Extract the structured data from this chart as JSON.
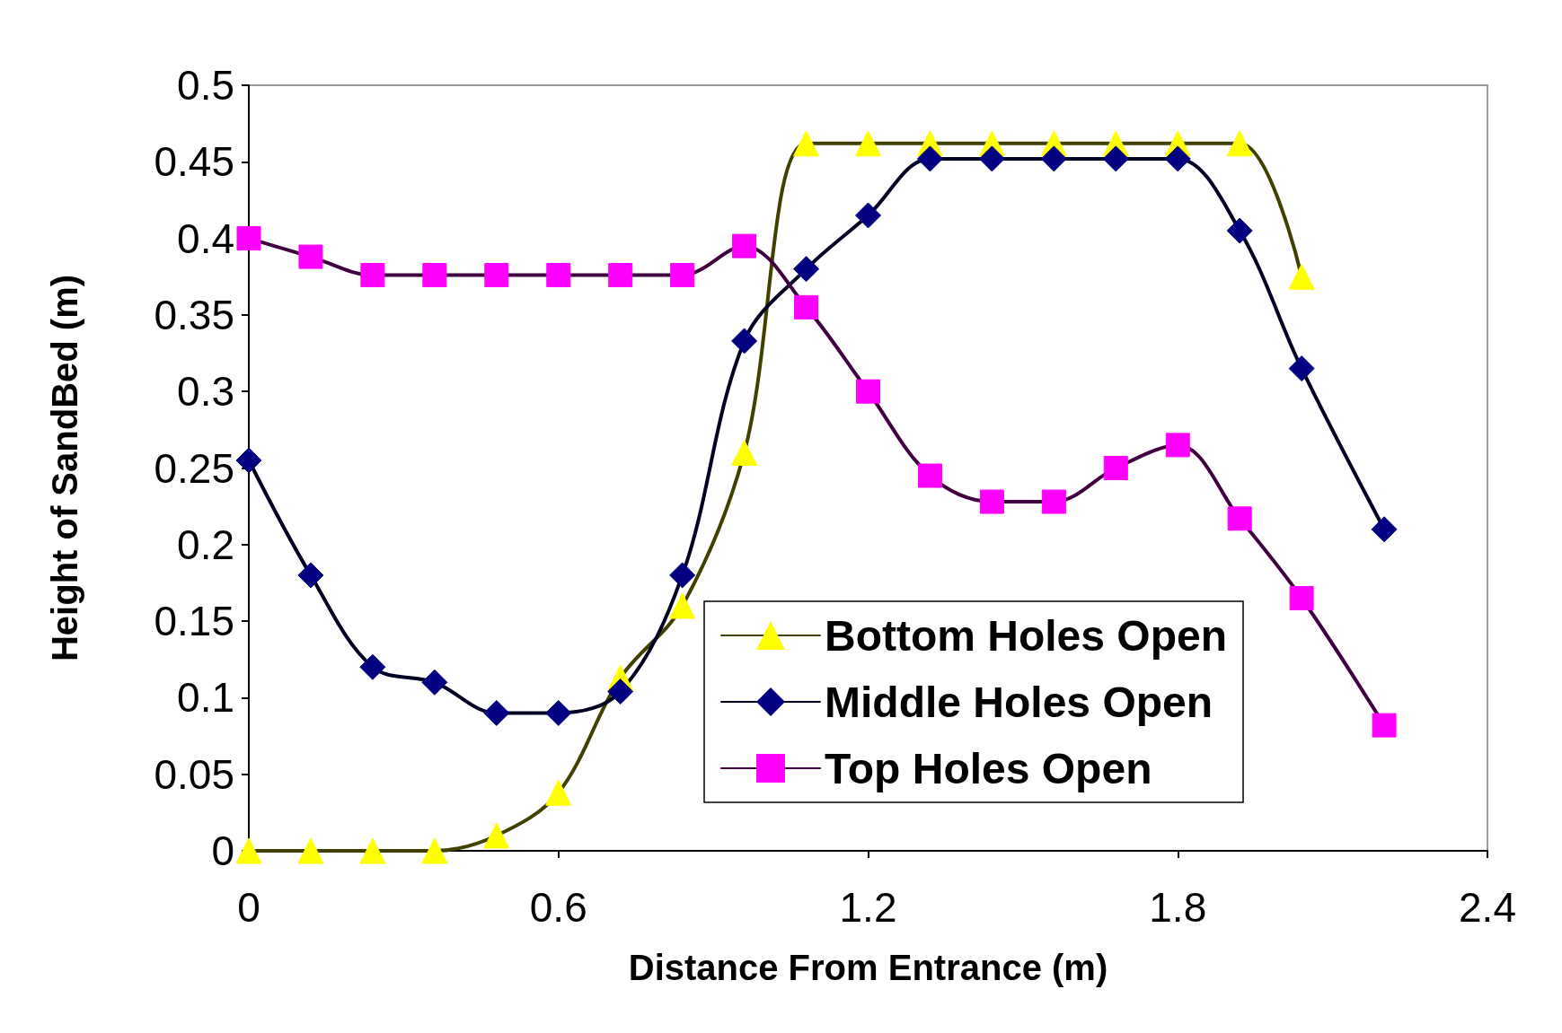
{
  "chart_data": {
    "type": "line",
    "xlabel": "Distance From Entrance (m)",
    "ylabel": "Height of SandBed (m)",
    "xlim": [
      0,
      2.4
    ],
    "xticks": [
      0,
      0.6,
      1.2,
      1.8,
      2.4
    ],
    "ylim": [
      0,
      0.5
    ],
    "yticks": [
      0,
      0.05,
      0.1,
      0.15,
      0.2,
      0.25,
      0.3,
      0.35,
      0.4,
      0.45,
      0.5
    ],
    "grid": false,
    "legend": "bottom right",
    "line_style": "solid",
    "series": [
      {
        "name": "Bottom Holes Open",
        "color": "#ffff00",
        "marker": "triangle",
        "x": [
          0,
          0.12,
          0.24,
          0.36,
          0.48,
          0.6,
          0.72,
          0.84,
          0.96,
          1.08,
          1.2,
          1.32,
          1.44,
          1.56,
          1.68,
          1.8,
          1.92,
          2.04
        ],
        "values": [
          0,
          0,
          0,
          0,
          0.01,
          0.038,
          0.113,
          0.16,
          0.26,
          0.462,
          0.462,
          0.462,
          0.462,
          0.462,
          0.462,
          0.462,
          0.462,
          0.375
        ]
      },
      {
        "name": "Middle Holes Open",
        "color": "#000080",
        "marker": "diamond",
        "x": [
          0,
          0.12,
          0.24,
          0.36,
          0.48,
          0.6,
          0.72,
          0.84,
          0.96,
          1.08,
          1.2,
          1.32,
          1.44,
          1.56,
          1.68,
          1.8,
          1.92,
          2.04,
          2.2
        ],
        "values": [
          0.255,
          0.18,
          0.12,
          0.11,
          0.09,
          0.09,
          0.104,
          0.18,
          0.333,
          0.38,
          0.415,
          0.452,
          0.452,
          0.452,
          0.452,
          0.452,
          0.405,
          0.315,
          0.21
        ]
      },
      {
        "name": "Top Holes Open",
        "color": "#ff00ff",
        "marker": "square",
        "x": [
          0,
          0.12,
          0.24,
          0.36,
          0.48,
          0.6,
          0.72,
          0.84,
          0.96,
          1.08,
          1.2,
          1.32,
          1.44,
          1.56,
          1.68,
          1.8,
          1.92,
          2.04,
          2.2
        ],
        "values": [
          0.4,
          0.388,
          0.376,
          0.376,
          0.376,
          0.376,
          0.376,
          0.376,
          0.395,
          0.355,
          0.3,
          0.245,
          0.228,
          0.228,
          0.25,
          0.265,
          0.217,
          0.165,
          0.082
        ]
      }
    ]
  }
}
